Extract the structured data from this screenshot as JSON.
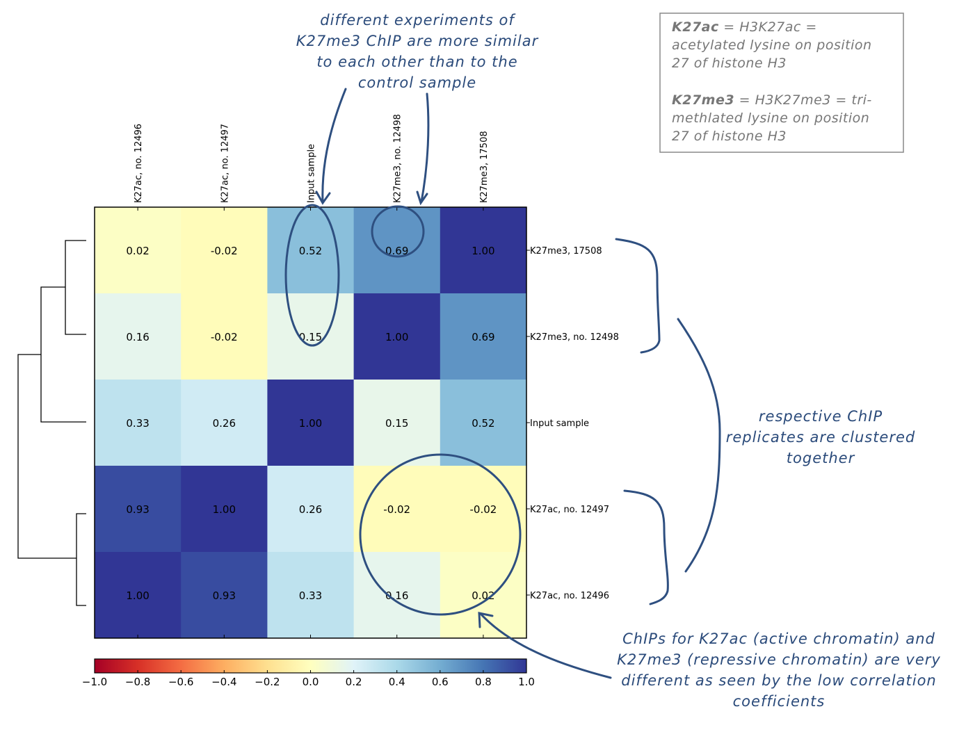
{
  "chart_data": {
    "type": "heatmap",
    "columns": [
      "K27ac, no. 12496",
      "K27ac, no. 12497",
      "Input sample",
      "K27me3, no. 12498",
      "K27me3, 17508"
    ],
    "rows": [
      "K27me3, 17508",
      "K27me3, no. 12498",
      "Input sample",
      "K27ac, no. 12497",
      "K27ac, no. 12496"
    ],
    "values": [
      [
        0.02,
        -0.02,
        0.52,
        0.69,
        1.0
      ],
      [
        0.16,
        -0.02,
        0.15,
        1.0,
        0.69
      ],
      [
        0.33,
        0.26,
        1.0,
        0.15,
        0.52
      ],
      [
        0.93,
        1.0,
        0.26,
        -0.02,
        -0.02
      ],
      [
        1.0,
        0.93,
        0.33,
        0.16,
        0.02
      ]
    ],
    "cell_labels": [
      [
        "0.02",
        "-0.02",
        "0.52",
        "0.69",
        "1.00"
      ],
      [
        "0.16",
        "-0.02",
        "0.15",
        "1.00",
        "0.69"
      ],
      [
        "0.33",
        "0.26",
        "1.00",
        "0.15",
        "0.52"
      ],
      [
        "0.93",
        "1.00",
        "0.26",
        "-0.02",
        "-0.02"
      ],
      [
        "1.00",
        "0.93",
        "0.33",
        "0.16",
        "0.02"
      ]
    ],
    "colorbar": {
      "range": [
        -1.0,
        1.0
      ],
      "ticks": [
        "−1.0",
        "−0.8",
        "−0.6",
        "−0.4",
        "−0.2",
        "0.0",
        "0.2",
        "0.4",
        "0.6",
        "0.8",
        "1.0"
      ],
      "colormap": "RdYlBu"
    }
  },
  "annotations": {
    "top": [
      "different experiments of",
      "K27me3 ChIP are more similar",
      "to each other than to the",
      "control sample"
    ],
    "right": [
      "respective ChIP",
      "replicates are clustered",
      "together"
    ],
    "bottom": [
      "ChIPs for K27ac (active chromatin) and",
      "K27me3 (repressive chromatin) are very",
      "different as seen by the low correlation",
      "coefficients"
    ]
  },
  "legend": {
    "k27ac_term": "K27ac",
    "k27ac_line1": " = H3K27ac =",
    "k27ac_line2": "acetylated lysine on position",
    "k27ac_line3": "27 of histone H3",
    "k27me3_term": "K27me3",
    "k27me3_line1": " = H3K27me3 = tri-",
    "k27me3_line2": "methlated lysine on position",
    "k27me3_line3": "27 of histone H3"
  },
  "colors": {
    "annotation": "#2a4a7a",
    "legend_text": "#777777"
  }
}
